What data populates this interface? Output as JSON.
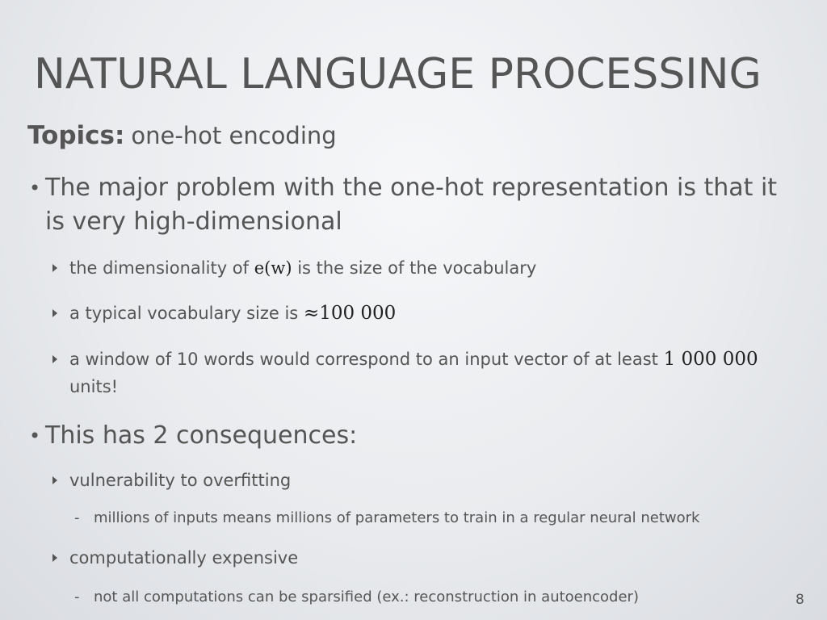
{
  "slide": {
    "title": "NATURAL LANGUAGE PROCESSING",
    "topics_label": "Topics:",
    "topics_value": "one-hot encoding",
    "bullet1": {
      "text": "The major problem with the one-hot representation is that it is very high-dimensional",
      "sub1_pre": "the dimensionality of ",
      "sub1_math": "e(w)",
      "sub1_post": " is the size of the vocabulary",
      "sub2_pre": "a typical vocabulary size is ",
      "sub2_math": "≈100 000",
      "sub3_pre": "a window of 10 words would correspond to an input vector of at least ",
      "sub3_math": "1 000 000",
      "sub3_post": " units!"
    },
    "bullet2": {
      "text": "This has 2 consequences:",
      "sub1": "vulnerability to overfitting",
      "sub1_detail": "millions of inputs means millions of parameters to train in a regular neural network",
      "sub2": "computationally expensive",
      "sub2_detail": "not all computations can be sparsified (ex.: reconstruction in autoencoder)"
    },
    "page_number": "8"
  }
}
